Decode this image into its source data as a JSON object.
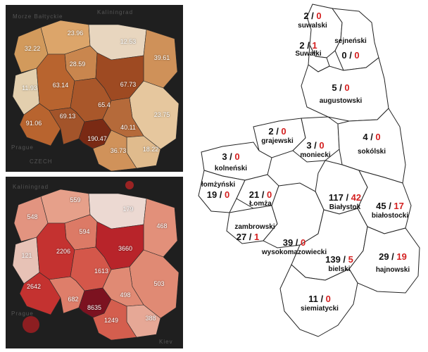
{
  "left_maps": {
    "background_labels": [
      "Morze Bałtyckie",
      "Kaliningrad",
      "Prague",
      "CZECH",
      "Kiev",
      "Kaliningrad",
      "Prague"
    ],
    "top_values": [
      "23.96",
      "12.53",
      "32.22",
      "28.59",
      "39.61",
      "11.93",
      "63.14",
      "67.73",
      "65.4",
      "23.75",
      "91.06",
      "69.13",
      "190.47",
      "40.11",
      "18.22",
      "36.73"
    ],
    "bottom_values": [
      "559",
      "179",
      "548",
      "594",
      "468",
      "121",
      "2206",
      "3660",
      "1613",
      "2642",
      "682",
      "498",
      "503",
      "8635",
      "1249",
      "388"
    ],
    "colors": {
      "dark_bg": "#1f1f1f",
      "light": "#e8d6bf",
      "mid": "#d29a5c",
      "dark": "#9e4a22",
      "red_light": "#e8a08e",
      "red_mid": "#d14a3b",
      "red_dark": "#8a1522"
    }
  },
  "counties": [
    {
      "name": "suwalski",
      "count": "2",
      "deaths": "0"
    },
    {
      "name": "sejneński",
      "count": "",
      "deaths": ""
    },
    {
      "name": "Suwałki",
      "count": "2",
      "deaths": "1"
    },
    {
      "name": "",
      "count": "0",
      "deaths": "0"
    },
    {
      "name": "augustowski",
      "count": "5",
      "deaths": "0"
    },
    {
      "name": "grajewski",
      "count": "2",
      "deaths": "0"
    },
    {
      "name": "moniecki",
      "count": "3",
      "deaths": "0"
    },
    {
      "name": "sokólski",
      "count": "4",
      "deaths": "0"
    },
    {
      "name": "kolneński",
      "count": "3",
      "deaths": "0"
    },
    {
      "name": "łomżyński",
      "count": "19",
      "deaths": "0"
    },
    {
      "name": "Łomża",
      "count": "21",
      "deaths": "0"
    },
    {
      "name": "Białystok",
      "count": "117",
      "deaths": "42"
    },
    {
      "name": "białostocki",
      "count": "45",
      "deaths": "17"
    },
    {
      "name": "zambrowski",
      "count": "27",
      "deaths": "1"
    },
    {
      "name": "wysokomazowiecki",
      "count": "39",
      "deaths": "0"
    },
    {
      "name": "bielski",
      "count": "139",
      "deaths": "5"
    },
    {
      "name": "hajnowski",
      "count": "29",
      "deaths": "19"
    },
    {
      "name": "siemiatycki",
      "count": "11",
      "deaths": "0"
    }
  ]
}
